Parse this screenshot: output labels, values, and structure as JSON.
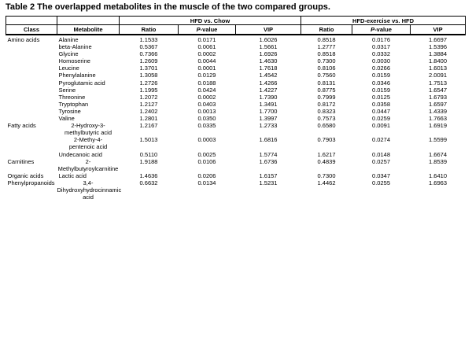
{
  "title": "Table 2 The overlapped metabolites in the muscle of the two compared groups.",
  "table": {
    "group_headers": [
      "HFD vs. Chow",
      "HFD-exercise vs. HFD"
    ],
    "column_headers": {
      "class": "Class",
      "metabolite": "Metabolite",
      "ratio": "Ratio",
      "p_italic": "P",
      "p_rest": "-value",
      "vip": "VIP"
    },
    "border_color": "#000000",
    "rows": [
      {
        "class": "Amino acids",
        "metabolite_lines": [
          "Alanine"
        ],
        "metabolite_align": "left",
        "hfd_vs_chow": {
          "ratio": "1.1533",
          "pvalue": "0.0171",
          "vip": "1.6026"
        },
        "hfd_exercise_vs_hfd": {
          "ratio": "0.8518",
          "pvalue": "0.0176",
          "vip": "1.6697"
        }
      },
      {
        "class": "",
        "metabolite_lines": [
          "beta-Alanine"
        ],
        "metabolite_align": "left",
        "hfd_vs_chow": {
          "ratio": "0.5367",
          "pvalue": "0.0061",
          "vip": "1.5661"
        },
        "hfd_exercise_vs_hfd": {
          "ratio": "1.2777",
          "pvalue": "0.0317",
          "vip": "1.5396"
        }
      },
      {
        "class": "",
        "metabolite_lines": [
          "Glycine"
        ],
        "metabolite_align": "left",
        "hfd_vs_chow": {
          "ratio": "0.7366",
          "pvalue": "0.0002",
          "vip": "1.6926"
        },
        "hfd_exercise_vs_hfd": {
          "ratio": "0.8518",
          "pvalue": "0.0332",
          "vip": "1.3884"
        }
      },
      {
        "class": "",
        "metabolite_lines": [
          "Homoserine"
        ],
        "metabolite_align": "left",
        "hfd_vs_chow": {
          "ratio": "1.2609",
          "pvalue": "0.0044",
          "vip": "1.4630"
        },
        "hfd_exercise_vs_hfd": {
          "ratio": "0.7300",
          "pvalue": "0.0030",
          "vip": "1.8400"
        }
      },
      {
        "class": "",
        "metabolite_lines": [
          "Leucine"
        ],
        "metabolite_align": "left",
        "hfd_vs_chow": {
          "ratio": "1.3701",
          "pvalue": "0.0001",
          "vip": "1.7618"
        },
        "hfd_exercise_vs_hfd": {
          "ratio": "0.8106",
          "pvalue": "0.0266",
          "vip": "1.6013"
        }
      },
      {
        "class": "",
        "metabolite_lines": [
          "Phenylalanine"
        ],
        "metabolite_align": "left",
        "hfd_vs_chow": {
          "ratio": "1.3058",
          "pvalue": "0.0129",
          "vip": "1.4542"
        },
        "hfd_exercise_vs_hfd": {
          "ratio": "0.7560",
          "pvalue": "0.0159",
          "vip": "2.0091"
        }
      },
      {
        "class": "",
        "metabolite_lines": [
          "Pyroglutamic acid"
        ],
        "metabolite_align": "left",
        "hfd_vs_chow": {
          "ratio": "1.2726",
          "pvalue": "0.0188",
          "vip": "1.4266"
        },
        "hfd_exercise_vs_hfd": {
          "ratio": "0.8131",
          "pvalue": "0.0346",
          "vip": "1.7513"
        }
      },
      {
        "class": "",
        "metabolite_lines": [
          "Serine"
        ],
        "metabolite_align": "left",
        "hfd_vs_chow": {
          "ratio": "1.1995",
          "pvalue": "0.0424",
          "vip": "1.4227"
        },
        "hfd_exercise_vs_hfd": {
          "ratio": "0.8775",
          "pvalue": "0.0159",
          "vip": "1.6547"
        }
      },
      {
        "class": "",
        "metabolite_lines": [
          "Threonine"
        ],
        "metabolite_align": "left",
        "hfd_vs_chow": {
          "ratio": "1.2072",
          "pvalue": "0.0002",
          "vip": "1.7390"
        },
        "hfd_exercise_vs_hfd": {
          "ratio": "0.7999",
          "pvalue": "0.0125",
          "vip": "1.6793"
        }
      },
      {
        "class": "",
        "metabolite_lines": [
          "Tryptophan"
        ],
        "metabolite_align": "left",
        "hfd_vs_chow": {
          "ratio": "1.2127",
          "pvalue": "0.0403",
          "vip": "1.3491"
        },
        "hfd_exercise_vs_hfd": {
          "ratio": "0.8172",
          "pvalue": "0.0358",
          "vip": "1.6597"
        }
      },
      {
        "class": "",
        "metabolite_lines": [
          "Tyrosine"
        ],
        "metabolite_align": "left",
        "hfd_vs_chow": {
          "ratio": "1.2402",
          "pvalue": "0.0013",
          "vip": "1.7700"
        },
        "hfd_exercise_vs_hfd": {
          "ratio": "0.8323",
          "pvalue": "0.0447",
          "vip": "1.4339"
        }
      },
      {
        "class": "",
        "metabolite_lines": [
          "Valine"
        ],
        "metabolite_align": "left",
        "hfd_vs_chow": {
          "ratio": "1.2801",
          "pvalue": "0.0350",
          "vip": "1.3997"
        },
        "hfd_exercise_vs_hfd": {
          "ratio": "0.7573",
          "pvalue": "0.0259",
          "vip": "1.7663"
        }
      },
      {
        "class": "Fatty acids",
        "metabolite_lines": [
          "2-Hydroxy-3-",
          "methylbutyric acid"
        ],
        "metabolite_align": "center",
        "hfd_vs_chow": {
          "ratio": "1.2167",
          "pvalue": "0.0335",
          "vip": "1.2733"
        },
        "hfd_exercise_vs_hfd": {
          "ratio": "0.6580",
          "pvalue": "0.0091",
          "vip": "1.6919"
        }
      },
      {
        "class": "",
        "metabolite_lines": [
          "2-Methy-4-",
          "pentenoic acid"
        ],
        "metabolite_align": "center",
        "hfd_vs_chow": {
          "ratio": "1.5013",
          "pvalue": "0.0003",
          "vip": "1.6816"
        },
        "hfd_exercise_vs_hfd": {
          "ratio": "0.7903",
          "pvalue": "0.0274",
          "vip": "1.5599"
        }
      },
      {
        "class": "",
        "metabolite_lines": [
          "Undecanoic acid"
        ],
        "metabolite_align": "left",
        "hfd_vs_chow": {
          "ratio": "0.5110",
          "pvalue": "0.0025",
          "vip": "1.5774"
        },
        "hfd_exercise_vs_hfd": {
          "ratio": "1.6217",
          "pvalue": "0.0148",
          "vip": "1.6674"
        }
      },
      {
        "class": "Carnitines",
        "metabolite_lines": [
          "2-",
          "Methylbutyroylcarnitine"
        ],
        "metabolite_align": "center",
        "hfd_vs_chow": {
          "ratio": "1.9188",
          "pvalue": "0.0106",
          "vip": "1.6736"
        },
        "hfd_exercise_vs_hfd": {
          "ratio": "0.4839",
          "pvalue": "0.0257",
          "vip": "1.8539"
        }
      },
      {
        "class": "Organic acids",
        "metabolite_lines": [
          "Lactic acid"
        ],
        "metabolite_align": "left",
        "hfd_vs_chow": {
          "ratio": "1.4636",
          "pvalue": "0.0206",
          "vip": "1.6157"
        },
        "hfd_exercise_vs_hfd": {
          "ratio": "0.7300",
          "pvalue": "0.0347",
          "vip": "1.6410"
        }
      },
      {
        "class": "Phenylpropanoids",
        "metabolite_lines": [
          "3,4-",
          "Dihydroxyhydrocinnamic",
          "acid"
        ],
        "metabolite_align": "center",
        "hfd_vs_chow": {
          "ratio": "0.6632",
          "pvalue": "0.0134",
          "vip": "1.5231"
        },
        "hfd_exercise_vs_hfd": {
          "ratio": "1.4462",
          "pvalue": "0.0255",
          "vip": "1.6963"
        }
      }
    ]
  }
}
